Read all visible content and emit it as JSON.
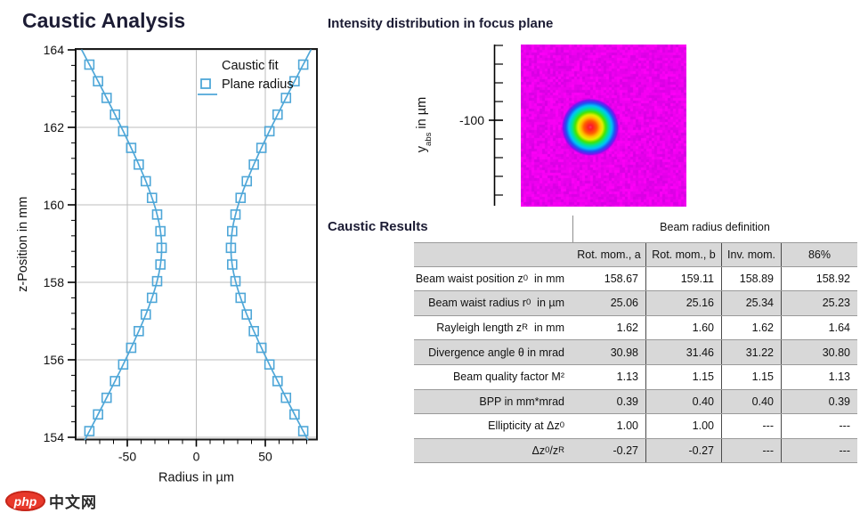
{
  "page": {
    "title": "Caustic Analysis",
    "intensity_title": "Intensity distribution in focus plane",
    "results_title": "Caustic Results"
  },
  "colors": {
    "accent_blue": "#4fa7d8",
    "title_navy": "#1c1c34",
    "grid_gray": "#bdbdbd",
    "frame_black": "#1a1a1a",
    "table_shaded_row": "#d8d8d8",
    "heatmap_background_magenta": "#ff00f6"
  },
  "chart_data": [
    {
      "type": "scatter",
      "title": "Caustic Analysis",
      "xlabel": "Radius in µm",
      "ylabel": "z-Position in mm",
      "xlim": [
        -87.4,
        87.4
      ],
      "ylim": [
        153.93,
        164.05
      ],
      "xticks": [
        -50,
        0,
        50
      ],
      "yticks": [
        154,
        156,
        158,
        160,
        162,
        164
      ],
      "x_minor_step": 10,
      "y_minor_step": 0.4,
      "grid": true,
      "legend_position": "top-right-inside",
      "legend": [
        "Caustic fit",
        "Plane radius"
      ],
      "series": [
        {
          "name": "Caustic fit",
          "type": "line",
          "fit_model": "r(z) = r0*sqrt(1+((z-z0)/zR)^2), plotted mirrored as ±r",
          "params": {
            "z0_mm": 158.89,
            "r0_um": 25.1,
            "zR_mm": 1.62
          }
        },
        {
          "name": "Plane radius",
          "type": "scatter-squares",
          "mirrored": true,
          "z_mm": [
            154.16,
            154.59,
            155.02,
            155.45,
            155.88,
            156.31,
            156.74,
            157.17,
            157.6,
            158.03,
            158.46,
            158.89,
            159.32,
            159.75,
            160.18,
            160.61,
            161.04,
            161.47,
            161.9,
            162.33,
            162.76,
            163.19,
            163.62
          ],
          "radius_um": [
            77.5,
            71.2,
            65.0,
            58.9,
            53.0,
            47.2,
            41.7,
            36.6,
            32.1,
            28.4,
            26.0,
            25.1,
            26.0,
            28.4,
            32.1,
            36.6,
            41.7,
            47.2,
            53.0,
            58.9,
            65.0,
            71.2,
            77.5
          ]
        }
      ]
    },
    {
      "type": "heatmap",
      "title": "Intensity distribution in focus plane",
      "ylabel_parts": [
        {
          "t": "y"
        },
        {
          "t": "abs",
          "sub": true
        },
        {
          "t": " in µm"
        }
      ],
      "ytick_labels": [
        "-100"
      ],
      "background": "magenta noise field",
      "spot": {
        "center_x_frac": 0.42,
        "center_y_frac": 0.51,
        "radius_px": 33,
        "colormap": "jet: red core, orange, yellow, green, cyan, blue, violet into magenta"
      }
    }
  ],
  "results_table": {
    "definition_header": "Beam radius definition",
    "columns": [
      "Rot. mom., a",
      "Rot. mom., b",
      "Inv. mom.",
      "86%"
    ],
    "rows": [
      {
        "label_parts": [
          {
            "t": "Beam waist position z"
          },
          {
            "t": "0",
            "sub": true
          },
          {
            "t": "  in mm"
          }
        ],
        "values": [
          "158.67",
          "159.11",
          "158.89",
          "158.92"
        ],
        "shaded": false
      },
      {
        "label_parts": [
          {
            "t": "Beam waist radius r"
          },
          {
            "t": "0",
            "sub": true
          },
          {
            "t": "  in µm"
          }
        ],
        "values": [
          "25.06",
          "25.16",
          "25.34",
          "25.23"
        ],
        "shaded": true
      },
      {
        "label_parts": [
          {
            "t": "Rayleigh length z"
          },
          {
            "t": "R",
            "sub": true
          },
          {
            "t": "  in mm"
          }
        ],
        "values": [
          "1.62",
          "1.60",
          "1.62",
          "1.64"
        ],
        "shaded": false
      },
      {
        "label_parts": [
          {
            "t": "Divergence angle θ in mrad"
          }
        ],
        "values": [
          "30.98",
          "31.46",
          "31.22",
          "30.80"
        ],
        "shaded": true
      },
      {
        "label_parts": [
          {
            "t": "Beam quality factor M²"
          }
        ],
        "values": [
          "1.13",
          "1.15",
          "1.15",
          "1.13"
        ],
        "shaded": false
      },
      {
        "label_parts": [
          {
            "t": "BPP in mm*mrad"
          }
        ],
        "values": [
          "0.39",
          "0.40",
          "0.40",
          "0.39"
        ],
        "shaded": true
      },
      {
        "label_parts": [
          {
            "t": "Ellipticity at Δz"
          },
          {
            "t": "0",
            "sub": true
          }
        ],
        "values": [
          "1.00",
          "1.00",
          "---",
          "---"
        ],
        "shaded": false
      },
      {
        "label_parts": [
          {
            "t": "Δz"
          },
          {
            "t": "0",
            "sub": true
          },
          {
            "t": " /z"
          },
          {
            "t": "R",
            "sub": true
          }
        ],
        "values": [
          "-0.27",
          "-0.27",
          "---",
          "---"
        ],
        "shaded": true
      }
    ]
  },
  "watermark": {
    "logo": "php",
    "text": "中文网"
  }
}
